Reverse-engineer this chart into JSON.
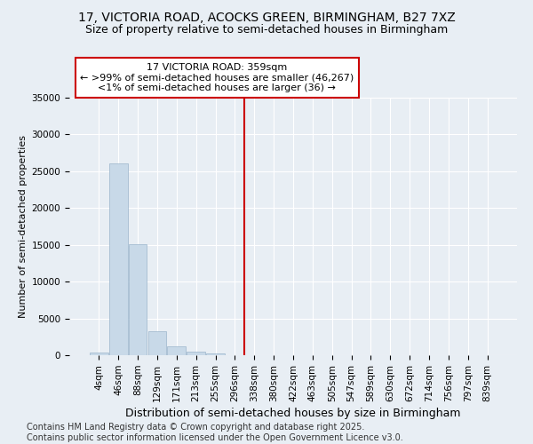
{
  "title_line1": "17, VICTORIA ROAD, ACOCKS GREEN, BIRMINGHAM, B27 7XZ",
  "title_line2": "Size of property relative to semi-detached houses in Birmingham",
  "xlabel": "Distribution of semi-detached houses by size in Birmingham",
  "ylabel": "Number of semi-detached properties",
  "categories": [
    "4sqm",
    "46sqm",
    "88sqm",
    "129sqm",
    "171sqm",
    "213sqm",
    "255sqm",
    "296sqm",
    "338sqm",
    "380sqm",
    "422sqm",
    "463sqm",
    "505sqm",
    "547sqm",
    "589sqm",
    "630sqm",
    "672sqm",
    "714sqm",
    "756sqm",
    "797sqm",
    "839sqm"
  ],
  "values": [
    350,
    26100,
    15100,
    3200,
    1200,
    450,
    200,
    50,
    0,
    0,
    0,
    0,
    0,
    0,
    0,
    0,
    0,
    0,
    0,
    0,
    0
  ],
  "bar_color": "#c8d9e8",
  "bar_edge_color": "#9bb5cb",
  "vline_color": "#cc0000",
  "vline_x_index": 8,
  "annotation_title": "17 VICTORIA ROAD: 359sqm",
  "annotation_line2": "← >99% of semi-detached houses are smaller (46,267)",
  "annotation_line3": "<1% of semi-detached houses are larger (36) →",
  "annotation_box_facecolor": "#ffffff",
  "annotation_box_edgecolor": "#cc0000",
  "ylim": [
    0,
    35000
  ],
  "yticks": [
    0,
    5000,
    10000,
    15000,
    20000,
    25000,
    30000,
    35000
  ],
  "background_color": "#e8eef4",
  "grid_color": "#ffffff",
  "footnote": "Contains HM Land Registry data © Crown copyright and database right 2025.\nContains public sector information licensed under the Open Government Licence v3.0.",
  "title_fontsize": 10,
  "subtitle_fontsize": 9,
  "tick_fontsize": 7.5,
  "ylabel_fontsize": 8,
  "xlabel_fontsize": 9,
  "annotation_fontsize": 8,
  "footnote_fontsize": 7
}
